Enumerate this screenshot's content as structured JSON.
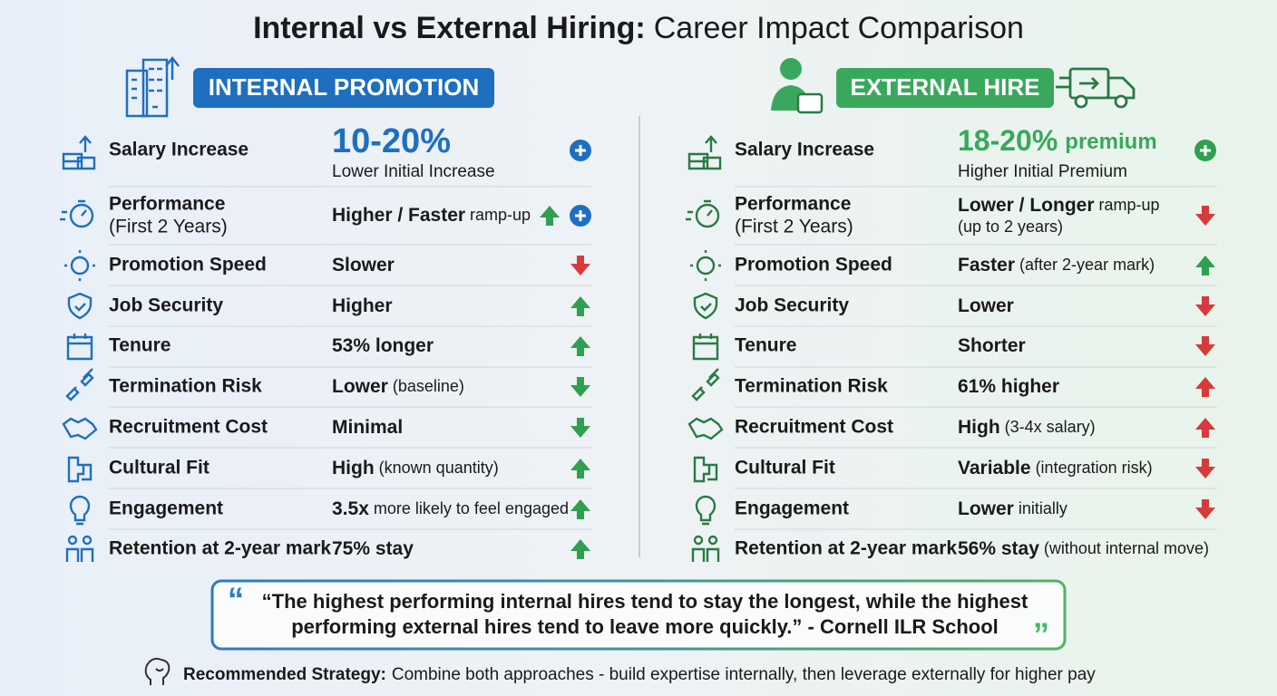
{
  "header": {
    "title_bold": "Internal vs External Hiring:",
    "title_rest": "Career Impact Comparison"
  },
  "left": {
    "badge": "INTERNAL PROMOTION",
    "color": "#1f6fc0",
    "rows": [
      {
        "label": [
          "Salary Increase"
        ],
        "big": "10-20%",
        "sub": "Lower Initial Increase",
        "indicators": [
          "plus-blue"
        ]
      },
      {
        "label": [
          "Performance",
          "(First 2 Years)"
        ],
        "value": "Higher / Faster",
        "note": "ramp-up",
        "indicators": [
          "up-green",
          "plus-blue"
        ]
      },
      {
        "label": [
          "Promotion Speed"
        ],
        "value": "Slower",
        "indicators": [
          "down-red"
        ]
      },
      {
        "label": [
          "Job Security"
        ],
        "value": "Higher",
        "indicators": [
          "up-green"
        ]
      },
      {
        "label": [
          "Tenure"
        ],
        "value": "53% longer",
        "indicators": [
          "up-green"
        ]
      },
      {
        "label": [
          "Termination Risk"
        ],
        "value": "Lower",
        "note": "(baseline)",
        "indicators": [
          "down-green"
        ]
      },
      {
        "label": [
          "Recruitment Cost"
        ],
        "value": "Minimal",
        "indicators": [
          "down-green"
        ]
      },
      {
        "label": [
          "Cultural Fit"
        ],
        "value": "High",
        "note": "(known quantity)",
        "indicators": [
          "up-green"
        ]
      },
      {
        "label": [
          "Engagement"
        ],
        "value": "3.5x",
        "note": "more likely to feel engaged",
        "indicators": [
          "up-green"
        ]
      },
      {
        "label": [
          "Retention at 2-year mark"
        ],
        "value": "75% stay",
        "indicators": [
          "up-green"
        ]
      }
    ]
  },
  "right": {
    "badge": "EXTERNAL HIRE",
    "color": "#3aa85c",
    "rows": [
      {
        "label": [
          "Salary Increase"
        ],
        "big": "18-20%",
        "big_suffix": "premium",
        "sub": "Higher Initial Premium",
        "indicators": [
          "plus-green"
        ]
      },
      {
        "label": [
          "Performance",
          "(First 2 Years)"
        ],
        "value": "Lower / Longer",
        "note": "ramp-up",
        "line2": "(up to 2 years)",
        "indicators": [
          "down-red"
        ]
      },
      {
        "label": [
          "Promotion Speed"
        ],
        "value": "Faster",
        "note": "(after 2-year mark)",
        "indicators": [
          "up-green"
        ]
      },
      {
        "label": [
          "Job Security"
        ],
        "value": "Lower",
        "indicators": [
          "down-red"
        ]
      },
      {
        "label": [
          "Tenure"
        ],
        "value": "Shorter",
        "indicators": [
          "down-red"
        ]
      },
      {
        "label": [
          "Termination Risk"
        ],
        "value": "61% higher",
        "indicators": [
          "up-red"
        ]
      },
      {
        "label": [
          "Recruitment Cost"
        ],
        "value": "High",
        "note": "(3-4x salary)",
        "indicators": [
          "up-red"
        ]
      },
      {
        "label": [
          "Cultural Fit"
        ],
        "value": "Variable",
        "note": "(integration risk)",
        "indicators": [
          "down-red"
        ]
      },
      {
        "label": [
          "Engagement"
        ],
        "value": "Lower",
        "note": "initially",
        "indicators": [
          "down-red"
        ]
      },
      {
        "label": [
          "Retention at 2-year mark"
        ],
        "value": "56% stay",
        "note": "(without internal move)",
        "indicators": []
      }
    ]
  },
  "quote": {
    "lines": [
      "“The highest performing internal hires tend to stay the longest, while the highest",
      "performing external hires tend to leave more quickly.” - Cornell ILR School"
    ]
  },
  "strategy": {
    "label": "Recommended Strategy:",
    "text": "Combine both approaches - build expertise internally, then leverage externally for higher pay"
  }
}
